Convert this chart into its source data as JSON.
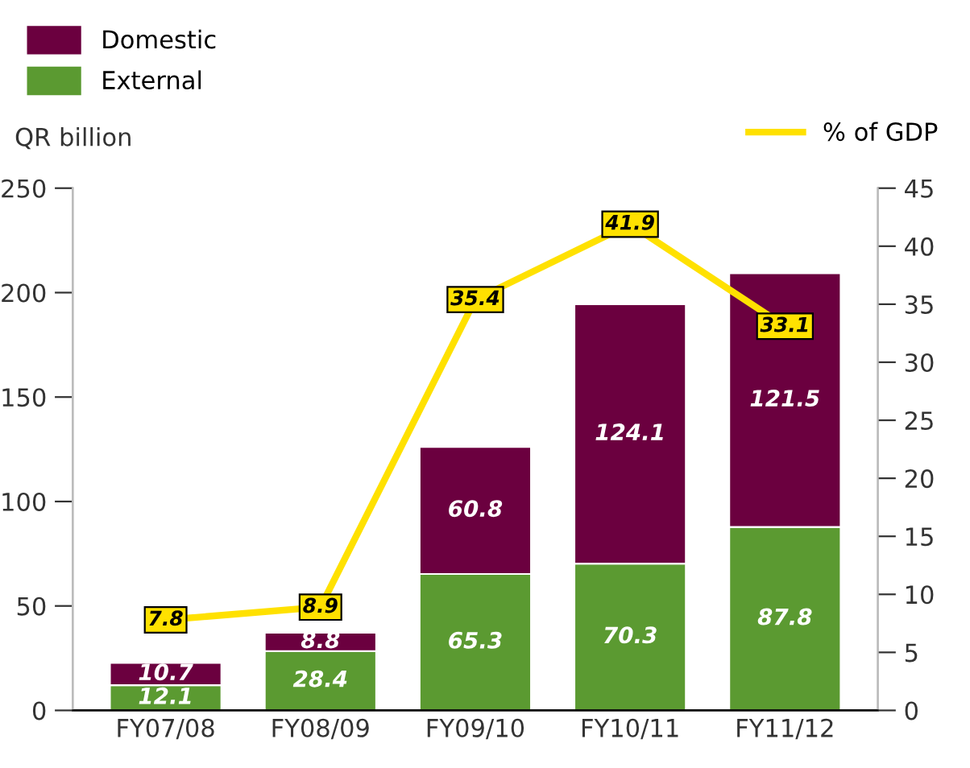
{
  "chart_data": {
    "type": "bar",
    "stacked": true,
    "categories": [
      "FY07/08",
      "FY08/09",
      "FY09/10",
      "FY10/11",
      "FY11/12"
    ],
    "ylabel": "QR billion",
    "series": [
      {
        "name": "External",
        "color": "#5b9a31",
        "values": [
          12.1,
          28.4,
          65.3,
          70.3,
          87.8
        ]
      },
      {
        "name": "Domestic",
        "color": "#6b003f",
        "values": [
          10.7,
          8.8,
          60.8,
          124.1,
          121.5
        ]
      },
      {
        "name": "% of GDP",
        "type": "line",
        "marker": "square",
        "axis": "y2",
        "color": "#ffe100",
        "values": [
          7.8,
          8.9,
          35.4,
          41.9,
          33.1
        ]
      }
    ],
    "ylim": [
      0,
      250
    ],
    "yticks": [
      0,
      50,
      100,
      150,
      200,
      250
    ],
    "y2lim": [
      0,
      45
    ],
    "y2ticks": [
      0,
      5,
      10,
      15,
      20,
      25,
      30,
      35,
      40,
      45
    ],
    "data_labels": true,
    "legend": "top",
    "grid": false
  }
}
